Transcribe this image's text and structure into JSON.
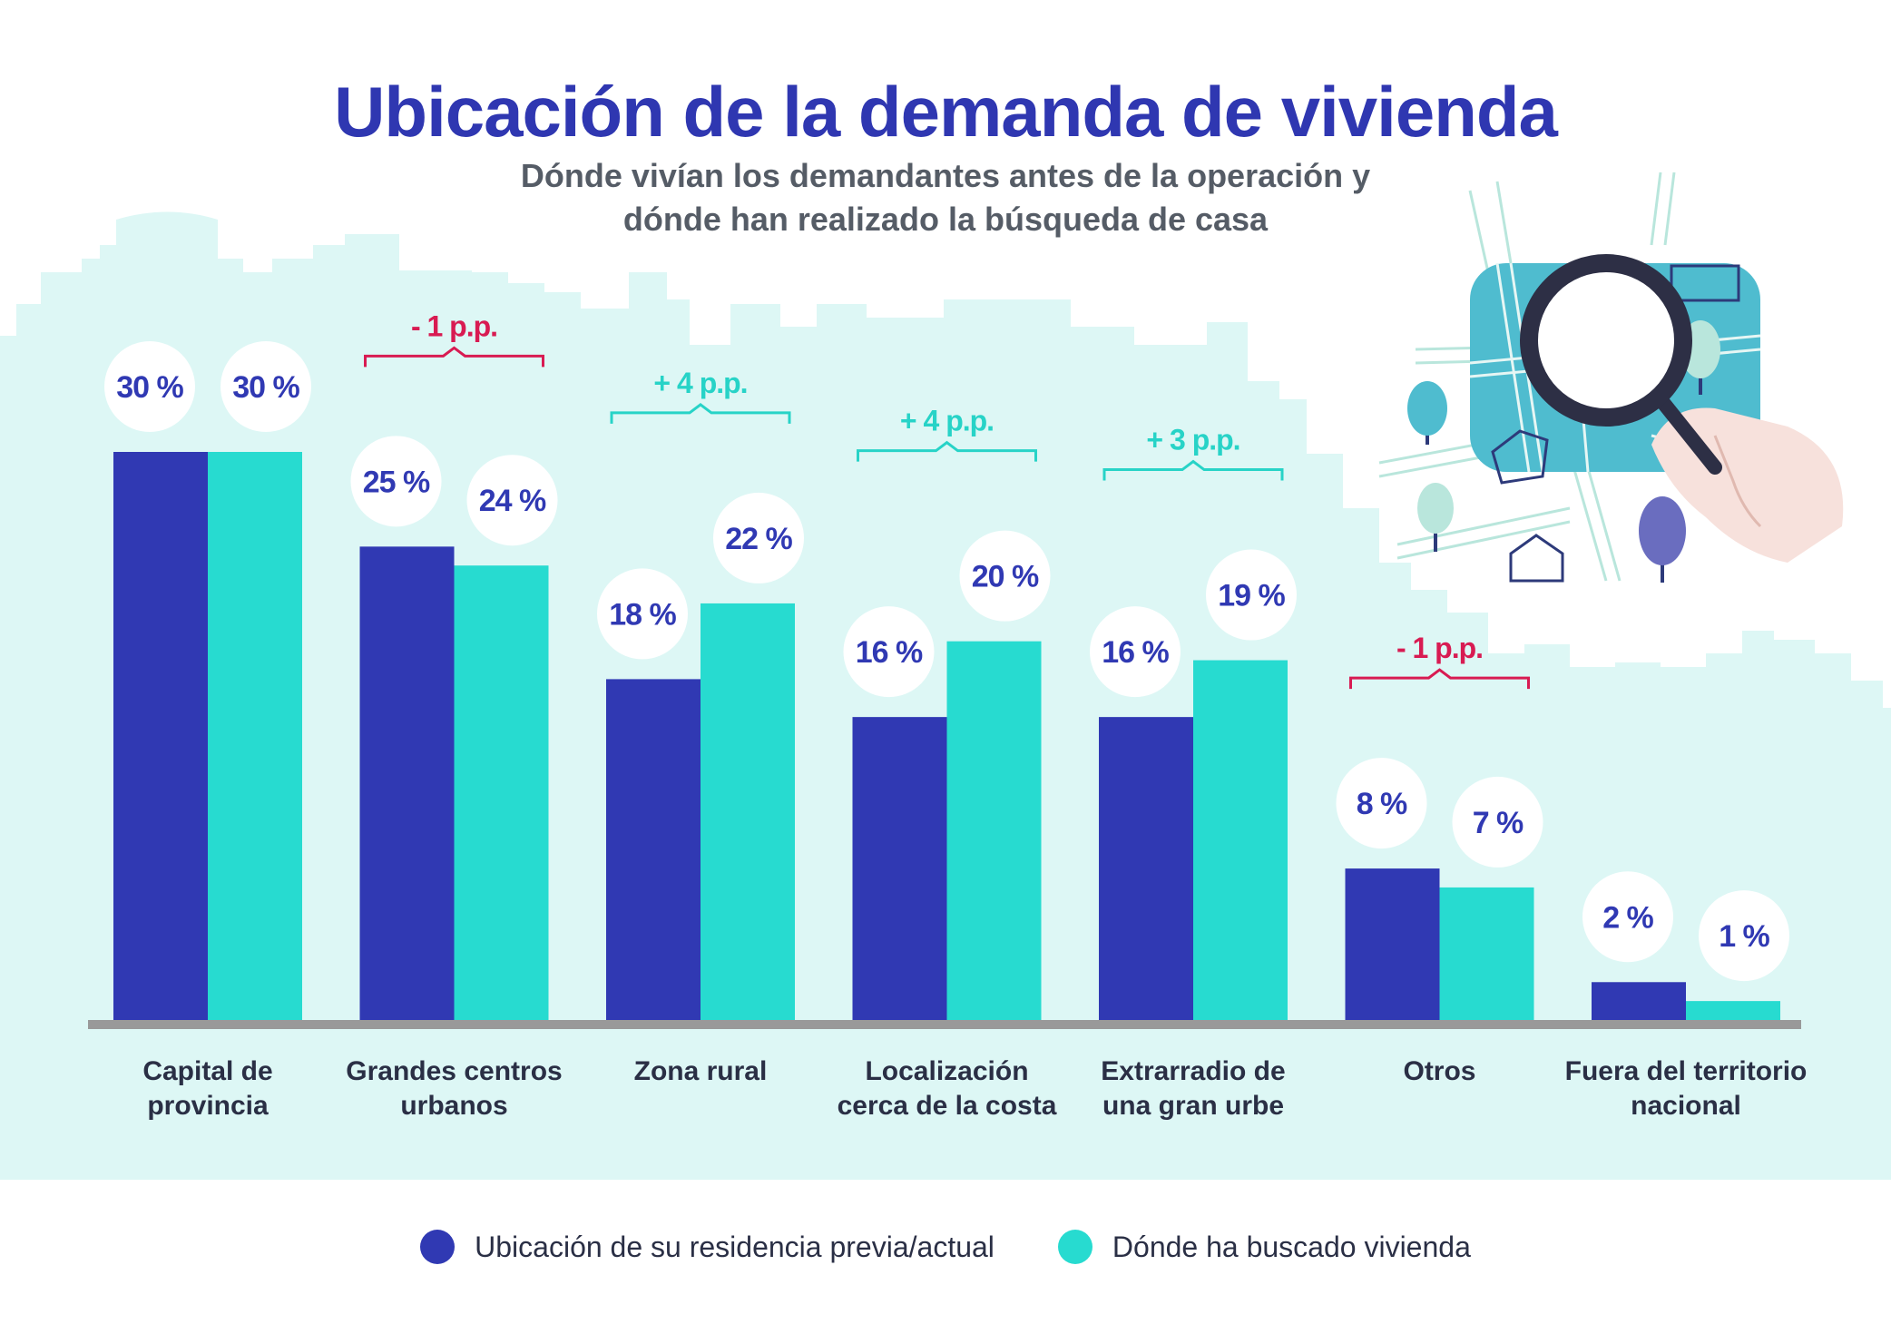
{
  "header": {
    "title": "Ubicación de la demanda de vivienda",
    "subtitle_line1": "Dónde vivían los demandantes antes de la operación y",
    "subtitle_line2": "dónde han realizado la búsqueda de casa"
  },
  "legend": {
    "previous": "Ubicación de su residencia previa/actual",
    "searched": "Dónde ha buscado vivienda"
  },
  "colors": {
    "previous": "#3039b3",
    "searched": "#27dbd0",
    "negative": "#d81b52",
    "positive": "#27d3c7",
    "background": "#ddf7f5",
    "axis": "#999999",
    "title": "#2f37b1"
  },
  "chart_data": {
    "type": "bar",
    "title": "Ubicación de la demanda de vivienda",
    "categories": [
      [
        "Capital de",
        "provincia"
      ],
      [
        "Grandes centros",
        "urbanos"
      ],
      [
        "Zona rural"
      ],
      [
        "Localización",
        "cerca de la costa"
      ],
      [
        "Extrarradio de",
        "una gran urbe"
      ],
      [
        "Otros"
      ],
      [
        "Fuera del territorio",
        "nacional"
      ]
    ],
    "series": [
      {
        "name": "Ubicación de su residencia previa/actual",
        "values": [
          30,
          25,
          18,
          16,
          16,
          8,
          2
        ],
        "labels": [
          "30 %",
          "25 %",
          "18 %",
          "16 %",
          "16 %",
          "8 %",
          "2 %"
        ]
      },
      {
        "name": "Dónde ha buscado vivienda",
        "values": [
          30,
          24,
          22,
          20,
          19,
          7,
          1
        ],
        "labels": [
          "30 %",
          "24 %",
          "22 %",
          "20 %",
          "19 %",
          "7 %",
          "1 %"
        ]
      }
    ],
    "differences": [
      "",
      "- 1 p.p.",
      "+ 4 p.p.",
      "+ 4 p.p.",
      "+ 3 p.p.",
      "- 1 p.p.",
      ""
    ],
    "ylim": [
      0,
      30
    ],
    "legend_position": "bottom"
  }
}
